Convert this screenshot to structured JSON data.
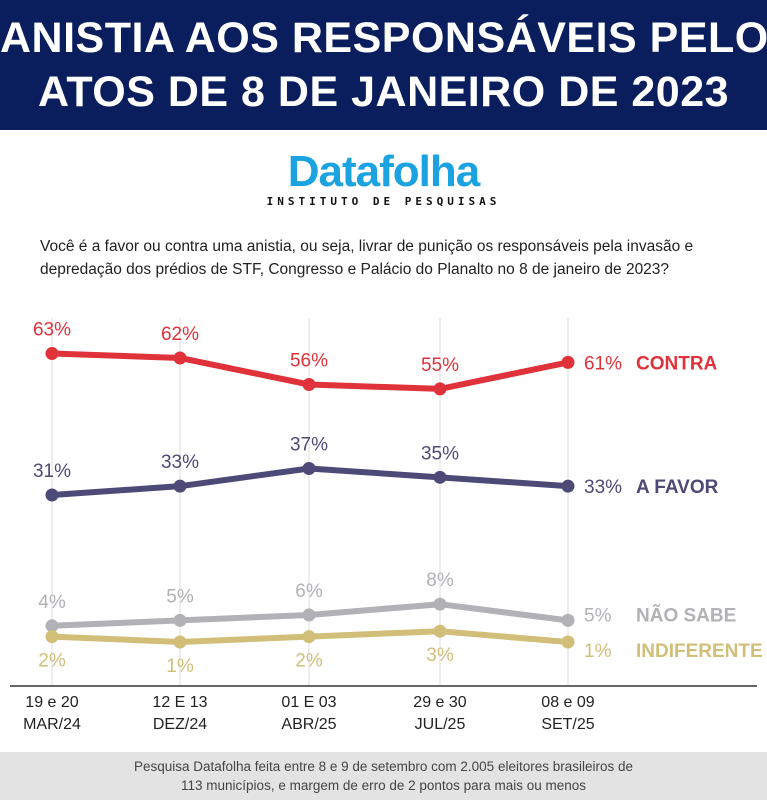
{
  "header": {
    "title_line1": "ANISTIA AOS RESPONSÁVEIS PELOS",
    "title_line2": "ATOS DE 8 DE JANEIRO DE 2023"
  },
  "logo": {
    "name": "Datafolha",
    "subtitle": "INSTITUTO DE PESQUISAS"
  },
  "question": "Você é a favor ou contra uma anistia, ou seja, livrar de punição os responsáveis pela invasão e depredação dos prédios de STF, Congresso e Palácio do Planalto no 8 de janeiro de 2023?",
  "footer": {
    "line1": "Pesquisa Datafolha feita entre 8 e 9 de setembro com 2.005 eleitores brasileiros de",
    "line2": "113 municípios, e margem de erro de 2 pontos para mais ou menos"
  },
  "chart_data": {
    "type": "line",
    "categories": [
      {
        "line1": "19 e 20",
        "line2": "MAR/24"
      },
      {
        "line1": "12 E 13",
        "line2": "DEZ/24"
      },
      {
        "line1": "01 E 03",
        "line2": "ABR/25"
      },
      {
        "line1": "29 e 30",
        "line2": "JUL/25"
      },
      {
        "line1": "08 e 09",
        "line2": "SET/25"
      }
    ],
    "series": [
      {
        "name": "CONTRA",
        "values": [
          63,
          62,
          56,
          55,
          61
        ],
        "labels": [
          "63%",
          "62%",
          "56%",
          "55%",
          "61%"
        ],
        "color": "#e0323a"
      },
      {
        "name": "A FAVOR",
        "values": [
          31,
          33,
          37,
          35,
          33
        ],
        "labels": [
          "31%",
          "33%",
          "37%",
          "35%",
          "33%"
        ],
        "color": "#4e4a78"
      },
      {
        "name": "NÃO SABE",
        "values": [
          4,
          5,
          6,
          8,
          5
        ],
        "labels": [
          "4%",
          "5%",
          "6%",
          "8%",
          "5%"
        ],
        "color": "#b1b1b6"
      },
      {
        "name": "INDIFERENTE",
        "values": [
          2,
          1,
          2,
          3,
          1
        ],
        "labels": [
          "2%",
          "1%",
          "2%",
          "3%",
          "1%"
        ],
        "color": "#d1bf79"
      }
    ],
    "grid": "vertical",
    "legend": "right, inline with line ends"
  }
}
